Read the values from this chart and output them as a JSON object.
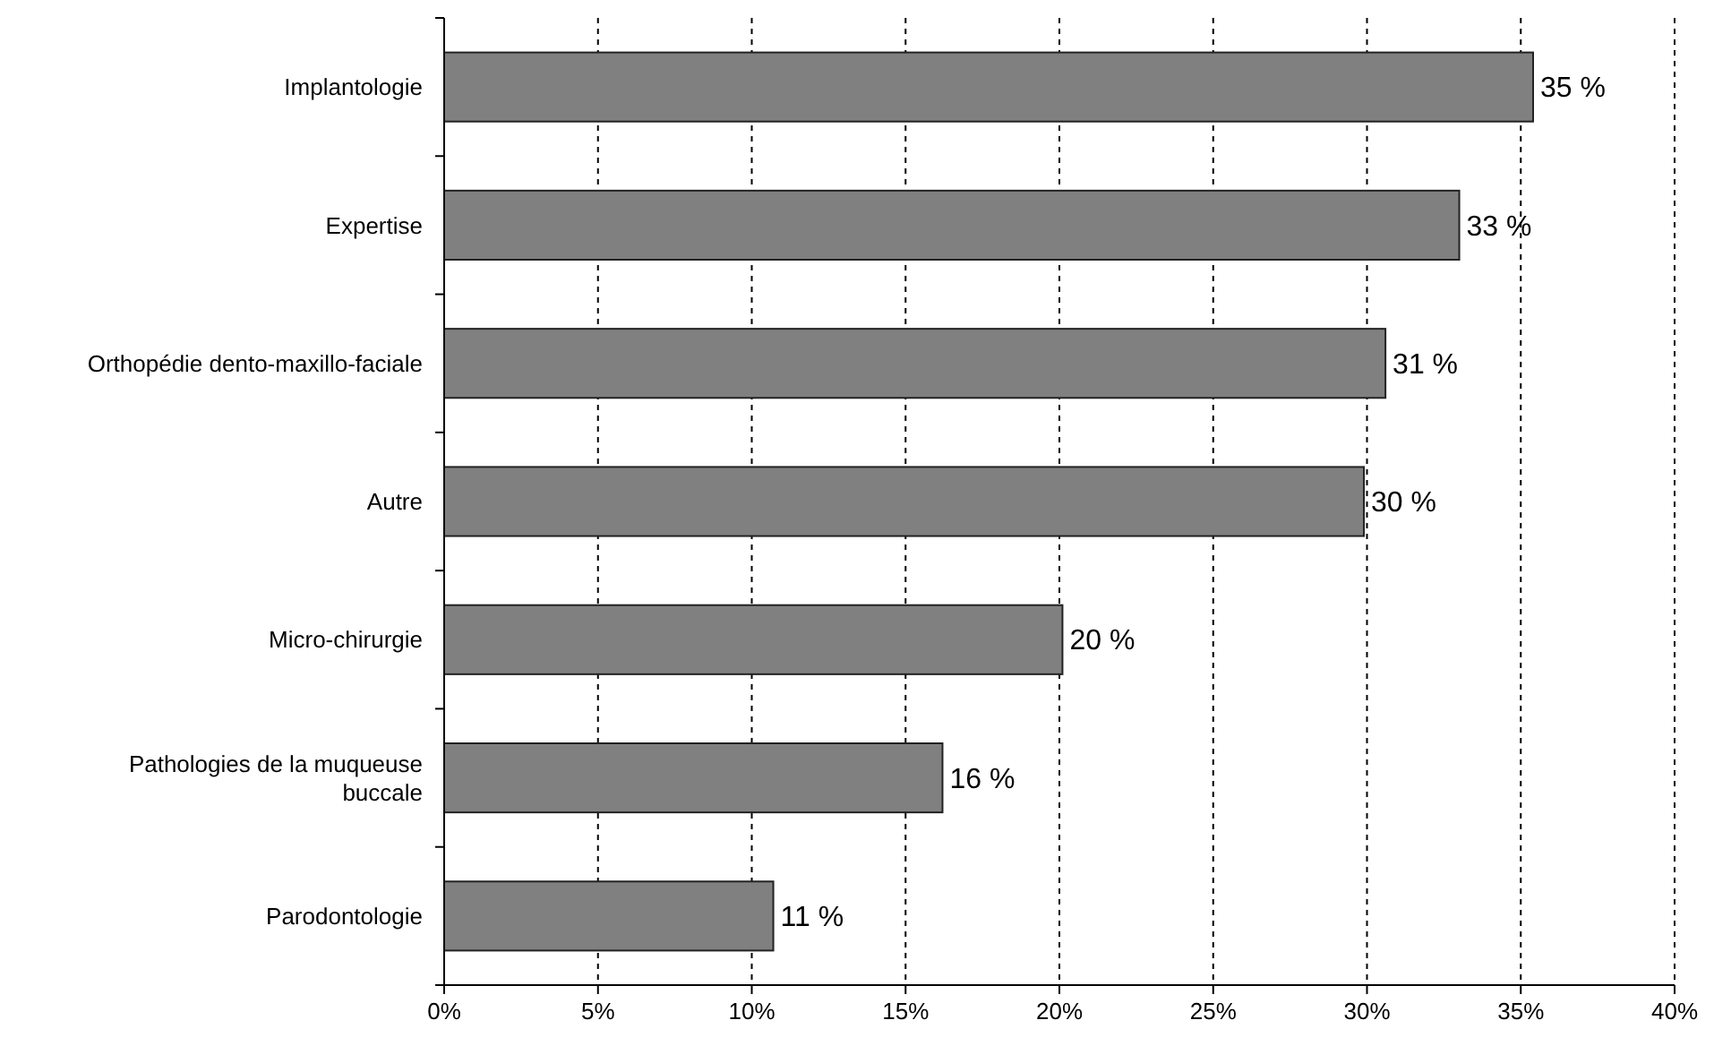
{
  "chart_data": {
    "type": "bar",
    "orientation": "horizontal",
    "categories": [
      "Implantologie",
      "Expertise",
      "Orthopédie dento-maxillo-faciale",
      "Autre",
      "Micro-chirurgie",
      "Pathologies de la muqueuse buccale",
      "Parodontologie"
    ],
    "values": [
      35.4,
      33.0,
      30.6,
      29.9,
      20.1,
      16.2,
      10.7
    ],
    "value_labels": [
      "35 %",
      "33 %",
      "31 %",
      "30 %",
      "20 %",
      "16 %",
      "11 %"
    ],
    "color": "#808080",
    "xlim": [
      0,
      40
    ],
    "xticks": [
      {
        "value": 0,
        "label": "0%"
      },
      {
        "value": 5,
        "label": "5%"
      },
      {
        "value": 10,
        "label": "10%"
      },
      {
        "value": 15,
        "label": "15%"
      },
      {
        "value": 20,
        "label": "20%"
      },
      {
        "value": 25,
        "label": "25%"
      },
      {
        "value": 30,
        "label": "30%"
      },
      {
        "value": 35,
        "label": "35%"
      },
      {
        "value": 40,
        "label": "40%"
      }
    ],
    "grid": "x"
  }
}
